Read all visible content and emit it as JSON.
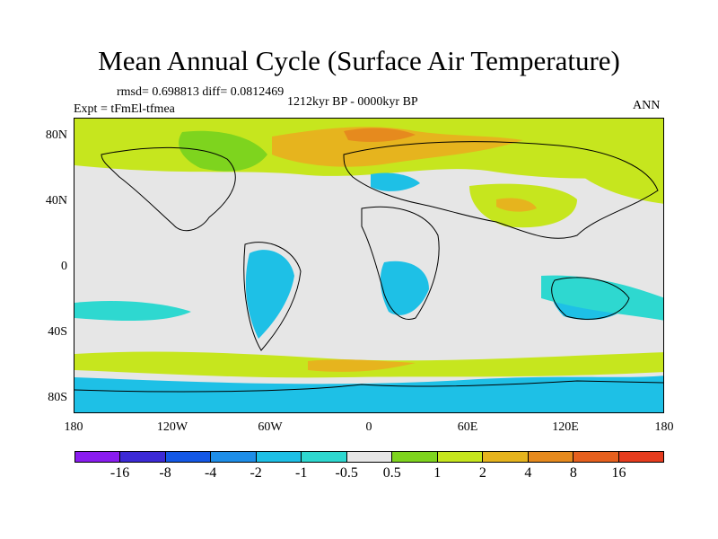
{
  "title": "Mean Annual Cycle (Surface Air Temperature)",
  "stats": "rmsd= 0.698813 diff= 0.0812469",
  "period": "1212kyr BP - 0000kyr BP",
  "experiment": "Expt = tFmEl-tfmea",
  "season": "ANN",
  "lat_labels": [
    "80N",
    "40N",
    "0",
    "40S",
    "80S"
  ],
  "lon_labels": [
    "180",
    "120W",
    "60W",
    "0",
    "60E",
    "120E",
    "180"
  ],
  "colorbar": {
    "labels": [
      "-16",
      "-8",
      "-4",
      "-2",
      "-1",
      "-0.5",
      "0.5",
      "1",
      "2",
      "4",
      "8",
      "16"
    ],
    "colors": [
      "#8a1cf0",
      "#3c2ad6",
      "#1458e6",
      "#1e8ee8",
      "#1ec0e6",
      "#2ed8d0",
      "#e6e6e6",
      "#7ed41e",
      "#c6e61e",
      "#e6b41e",
      "#e68a1e",
      "#e6601e",
      "#e63c1e"
    ]
  }
}
